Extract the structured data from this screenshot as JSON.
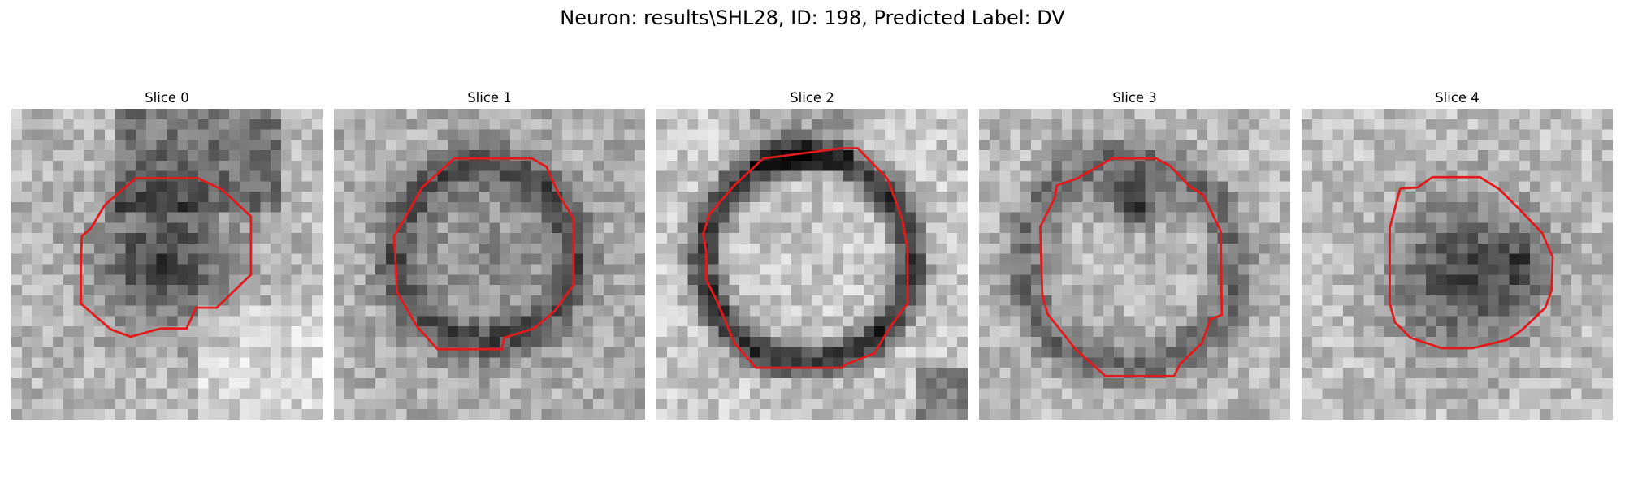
{
  "figure": {
    "title": "Neuron: results\\SHL28, ID: 198, Predicted Label: DV",
    "contour_color": "#e31a1c",
    "colormap": "gray",
    "slices": [
      {
        "title": "Slice 0",
        "dark_region": "off-center blob, dark interior",
        "seed": 11
      },
      {
        "title": "Slice 1",
        "dark_region": "dark ring with lighter center",
        "seed": 23
      },
      {
        "title": "Slice 2",
        "dark_region": "sharp dark ring, bright center",
        "seed": 37
      },
      {
        "title": "Slice 3",
        "dark_region": "bright center with dark spot top",
        "seed": 51
      },
      {
        "title": "Slice 4",
        "dark_region": "dark blob, lower",
        "seed": 67
      }
    ]
  }
}
